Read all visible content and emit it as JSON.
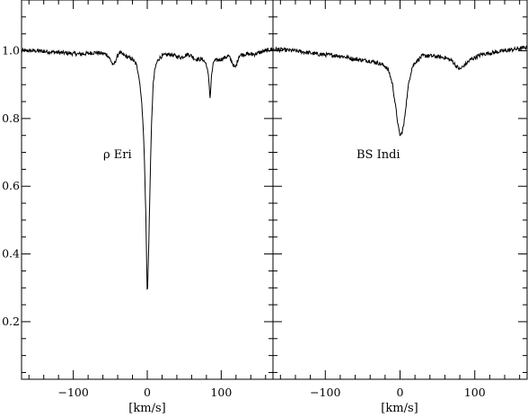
{
  "chart_data": [
    {
      "type": "line",
      "panel_label": "ρ Eri",
      "xlabel": "[km/s]",
      "ylabel": "",
      "xlim": [
        -170,
        170
      ],
      "ylim": [
        0.03,
        1.15
      ],
      "xticks": [
        -100,
        0,
        100
      ],
      "xtick_labels": [
        "−100",
        "0",
        "100"
      ],
      "yticks": [
        0.2,
        0.4,
        0.6,
        0.8,
        1.0
      ],
      "ytick_labels": [
        "0.2",
        "0.4",
        "0.6",
        "0.8",
        "1.0"
      ],
      "series": [
        {
          "x": [
            -170,
            -150,
            -120,
            -90,
            -70,
            -55,
            -50,
            -46,
            -43,
            -38,
            -30,
            -20,
            -15,
            -12,
            -9,
            -6,
            -4,
            -2,
            0,
            2,
            4,
            6,
            8,
            10,
            12,
            15,
            20,
            30,
            45,
            55,
            60,
            65,
            75,
            80,
            83,
            85,
            87,
            90,
            100,
            110,
            115,
            118,
            120,
            124,
            130,
            145,
            160,
            170
          ],
          "y": [
            1.0,
            1.0,
            0.995,
            0.99,
            0.995,
            0.99,
            0.975,
            0.955,
            0.97,
            0.995,
            0.985,
            0.975,
            0.96,
            0.935,
            0.885,
            0.8,
            0.69,
            0.52,
            0.27,
            0.42,
            0.63,
            0.8,
            0.9,
            0.94,
            0.96,
            0.975,
            0.985,
            0.99,
            0.98,
            0.99,
            0.985,
            0.975,
            0.975,
            0.96,
            0.92,
            0.86,
            0.93,
            0.97,
            0.975,
            0.985,
            0.965,
            0.95,
            0.955,
            0.985,
            0.99,
            0.99,
            1.0,
            1.005
          ]
        }
      ]
    },
    {
      "type": "line",
      "panel_label": "BS Indi",
      "xlabel": "[km/s]",
      "ylabel": "",
      "xlim": [
        -170,
        170
      ],
      "ylim": [
        0.03,
        1.15
      ],
      "xticks": [
        -100,
        0,
        100
      ],
      "xtick_labels": [
        "−100",
        "0",
        "100"
      ],
      "yticks": [
        0.2,
        0.4,
        0.6,
        0.8,
        1.0
      ],
      "series": [
        {
          "x": [
            -170,
            -140,
            -110,
            -80,
            -60,
            -40,
            -30,
            -20,
            -15,
            -10,
            -5,
            -2,
            0,
            2,
            5,
            8,
            12,
            16,
            20,
            25,
            30,
            40,
            60,
            70,
            75,
            80,
            85,
            95,
            110,
            140,
            170
          ],
          "y": [
            1.005,
            1.0,
            0.99,
            0.985,
            0.975,
            0.97,
            0.965,
            0.955,
            0.94,
            0.9,
            0.82,
            0.77,
            0.75,
            0.755,
            0.78,
            0.84,
            0.91,
            0.95,
            0.965,
            0.975,
            0.985,
            0.985,
            0.98,
            0.97,
            0.955,
            0.945,
            0.955,
            0.975,
            0.99,
            1.0,
            1.01
          ]
        }
      ]
    }
  ]
}
